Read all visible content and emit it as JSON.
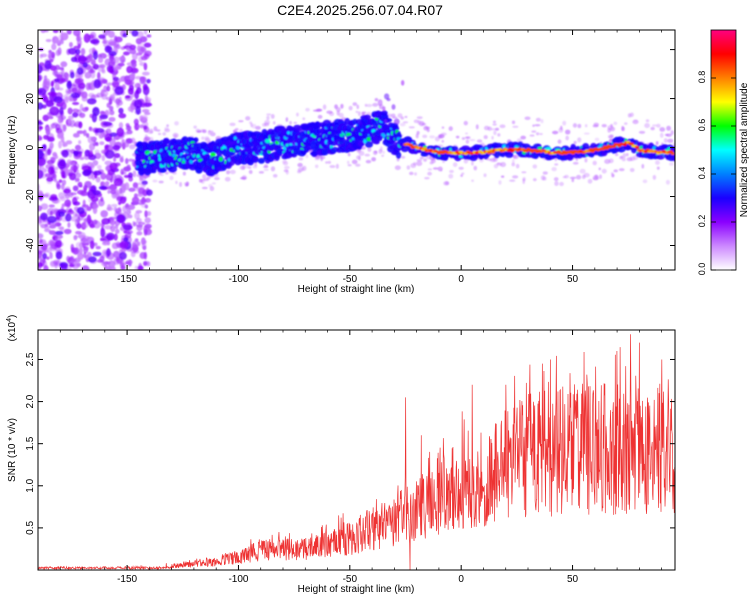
{
  "title": "C2E4.2025.256.07.04.R07",
  "chart_data": [
    {
      "id": "spectrogram",
      "type": "heatmap",
      "xlabel": "Height of straight line (km)",
      "ylabel": "Frequency (Hz)",
      "xlim": [
        -190,
        96
      ],
      "ylim": [
        -50,
        48
      ],
      "x_ticks": [
        -150,
        -100,
        -50,
        0,
        50
      ],
      "y_ticks": [
        -40,
        -20,
        0,
        20,
        40
      ],
      "track": [
        [
          -150,
          -5
        ],
        [
          -140,
          -4
        ],
        [
          -130,
          -3
        ],
        [
          -120,
          -2
        ],
        [
          -115,
          -5
        ],
        [
          -110,
          -4
        ],
        [
          -100,
          0
        ],
        [
          -90,
          0
        ],
        [
          -80,
          2
        ],
        [
          -70,
          3
        ],
        [
          -60,
          4
        ],
        [
          -50,
          5
        ],
        [
          -40,
          7
        ],
        [
          -35,
          9
        ],
        [
          -30,
          3
        ],
        [
          -20,
          0
        ],
        [
          -10,
          -2
        ],
        [
          0,
          -2
        ],
        [
          10,
          -2
        ],
        [
          20,
          -1
        ],
        [
          30,
          -1
        ],
        [
          40,
          -2
        ],
        [
          50,
          -2
        ],
        [
          60,
          -1
        ],
        [
          70,
          1
        ],
        [
          75,
          2
        ],
        [
          80,
          -1
        ],
        [
          90,
          -2
        ],
        [
          96,
          -2
        ]
      ],
      "colorbar": {
        "label": "Normalized spectral amplitude",
        "ticks": [
          "0.0",
          "0.2",
          "0.4",
          "0.6",
          "0.8"
        ],
        "tick_values": [
          0,
          0.2,
          0.4,
          0.6,
          0.8
        ],
        "range": [
          0,
          1
        ],
        "colors": [
          "#ffffff",
          "#cc88ff",
          "#8a00ff",
          "#1a00ff",
          "#0080ff",
          "#00ffff",
          "#00ff00",
          "#ffff00",
          "#ff8000",
          "#ff0000",
          "#ff0080"
        ]
      }
    },
    {
      "id": "snr",
      "type": "line",
      "xlabel": "Height of straight line (km)",
      "ylabel": "SNR (10 * v/v)",
      "scale_label_prefix": "(x10",
      "scale_label_exp": "4",
      "scale_label_suffix": ")",
      "xlim": [
        -190,
        96
      ],
      "ylim": [
        0,
        2.85
      ],
      "x_ticks": [
        -150,
        -100,
        -50,
        0,
        50
      ],
      "y_ticks": [
        0.5,
        1.0,
        1.5,
        2.0,
        2.5
      ],
      "y_tick_labels": [
        "0.5",
        "1.0",
        "1.5",
        "2.0",
        "2.5"
      ],
      "color": "#ee3333",
      "envelope": [
        [
          -190,
          0.02
        ],
        [
          -150,
          0.03
        ],
        [
          -130,
          0.06
        ],
        [
          -110,
          0.12
        ],
        [
          -100,
          0.2
        ],
        [
          -90,
          0.3
        ],
        [
          -80,
          0.32
        ],
        [
          -70,
          0.34
        ],
        [
          -60,
          0.4
        ],
        [
          -50,
          0.5
        ],
        [
          -40,
          0.62
        ],
        [
          -30,
          0.75
        ],
        [
          -20,
          0.9
        ],
        [
          -10,
          1.1
        ],
        [
          0,
          1.3
        ],
        [
          10,
          1.45
        ],
        [
          20,
          1.6
        ],
        [
          30,
          1.75
        ],
        [
          40,
          1.8
        ],
        [
          50,
          1.85
        ],
        [
          60,
          1.85
        ],
        [
          70,
          1.85
        ],
        [
          80,
          1.85
        ],
        [
          90,
          1.85
        ],
        [
          96,
          1.85
        ]
      ],
      "spikes": [
        [
          -25,
          2.05
        ],
        [
          -23,
          0.0
        ],
        [
          -18,
          1.6
        ],
        [
          5,
          2.2
        ],
        [
          20,
          2.2
        ],
        [
          40,
          2.5
        ],
        [
          70,
          2.6
        ],
        [
          76,
          2.8
        ],
        [
          80,
          2.7
        ],
        [
          86,
          0.9
        ],
        [
          90,
          2.5
        ]
      ]
    }
  ]
}
